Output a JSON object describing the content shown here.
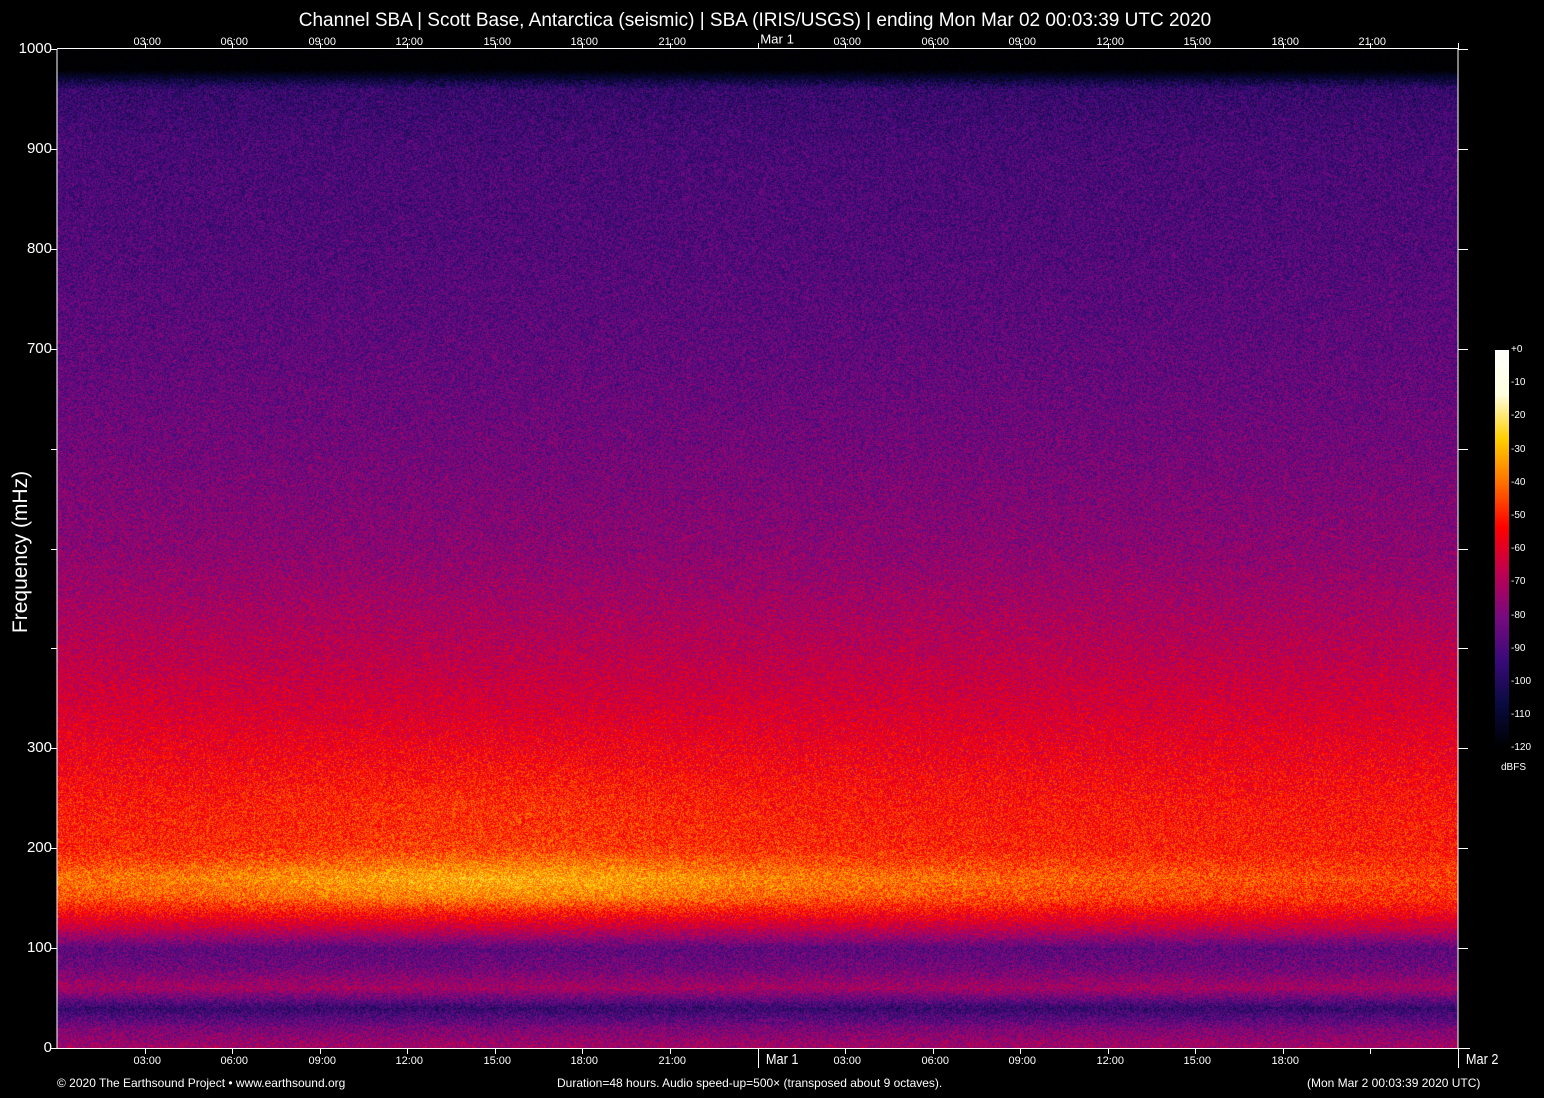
{
  "chart_data": {
    "type": "heatmap",
    "title": "Channel SBA | Scott Base, Antarctica (seismic) | SBA (IRIS/USGS) | ending Mon Mar 02 00:03:39 UTC 2020",
    "ylabel": "Frequency (mHz)",
    "ylim": [
      0,
      1000
    ],
    "y_ticks": [
      0,
      100,
      200,
      300,
      400,
      500,
      600,
      700,
      800,
      900,
      1000
    ],
    "y_tick_labels": [
      "0",
      "100",
      "200",
      "300",
      "",
      "",
      "",
      "700",
      "800",
      "900",
      "1000"
    ],
    "x_range_hours": [
      0,
      48
    ],
    "x_ticks_hours": [
      3,
      6,
      9,
      12,
      15,
      18,
      21,
      24,
      27,
      30,
      33,
      36,
      39,
      42,
      45,
      48
    ],
    "x_tick_labels_bottom": [
      "03:00",
      "06:00",
      "09:00",
      "12:00",
      "15:00",
      "18:00",
      "21:00",
      "Mar  1",
      "03:00",
      "06:00",
      "09:00",
      "12:00",
      "15:00",
      "18:00",
      "",
      "Mar  2"
    ],
    "x_tick_labels_top": [
      "03:00",
      "06:00",
      "09:00",
      "12:00",
      "15:00",
      "18:00",
      "21:00",
      "Mar  1",
      "03:00",
      "06:00",
      "09:00",
      "12:00",
      "15:00",
      "18:00",
      "21:00",
      ""
    ],
    "colorbar": {
      "unit": "dBFS",
      "range": [
        -120,
        0
      ],
      "tick_labels": [
        "+0",
        "-10",
        "-20",
        "-30",
        "-40",
        "-50",
        "-60",
        "-70",
        "-80",
        "-90",
        "-100",
        "-110",
        "-120"
      ],
      "colormap": [
        "#000000",
        "#0a0a40",
        "#3a0a7a",
        "#7a0a80",
        "#c00050",
        "#ff0000",
        "#ff7000",
        "#ffd000",
        "#ffffe0",
        "#ffffff"
      ]
    },
    "mean_level_profile": {
      "frequency_mHz": [
        0,
        20,
        40,
        60,
        80,
        100,
        120,
        150,
        170,
        200,
        250,
        300,
        400,
        500,
        600,
        700,
        800,
        900,
        960,
        980,
        1000
      ],
      "dBFS": [
        -72,
        -80,
        -95,
        -72,
        -82,
        -86,
        -66,
        -44,
        -40,
        -50,
        -53,
        -58,
        -68,
        -77,
        -82,
        -86,
        -89,
        -91,
        -95,
        -120,
        -120
      ]
    },
    "band_peak": {
      "frequency_mHz": 165,
      "peak_hours": [
        9,
        21
      ]
    }
  },
  "footer": {
    "copyright": "© 2020 The Earthsound Project • www.earthsound.org",
    "duration": "Duration=48 hours. Audio speed-up=500× (transposed about 9 octaves).",
    "end_time": "(Mon Mar  2 00:03:39 2020 UTC)"
  }
}
